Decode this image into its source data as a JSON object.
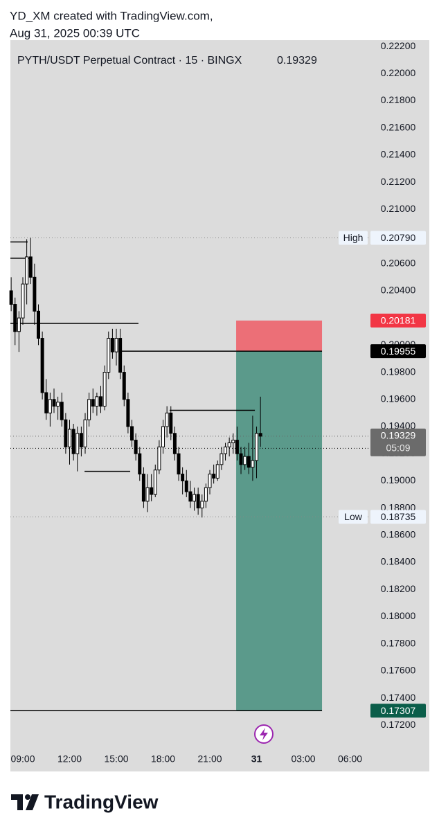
{
  "header": {
    "author_line": "YD_XM created with TradingView.com,",
    "date_line": "Aug 31, 2025 00:39 UTC"
  },
  "chart_data": {
    "type": "candlestick",
    "title": "PYTH/USDT Perpetual Contract · 15 · BINGX",
    "last_price": 0.19329,
    "countdown": "05:09",
    "last_price_color": "#6b6b6b",
    "up_color": "#ffffff",
    "down_color": "#000000",
    "x": [
      8.25,
      8.5,
      8.75,
      9.0,
      9.25,
      9.5,
      9.75,
      10.0,
      10.25,
      10.5,
      10.75,
      11.0,
      11.25,
      11.5,
      11.75,
      12.0,
      12.25,
      12.5,
      12.75,
      13.0,
      13.25,
      13.5,
      13.75,
      14.0,
      14.25,
      14.5,
      14.75,
      15.0,
      15.25,
      15.5,
      15.75,
      16.0,
      16.25,
      16.5,
      16.75,
      17.0,
      17.25,
      17.5,
      17.75,
      18.0,
      18.25,
      18.5,
      18.75,
      19.0,
      19.25,
      19.5,
      19.75,
      20.0,
      20.25,
      20.5,
      20.75,
      21.0,
      21.25,
      21.5,
      21.75,
      22.0,
      22.25,
      22.5,
      22.75,
      23.0,
      23.25,
      23.5,
      23.75,
      24.0,
      24.25
    ],
    "open": [
      0.204,
      0.203,
      0.201,
      0.202,
      0.2045,
      0.2065,
      0.205,
      0.2025,
      0.2005,
      0.1965,
      0.195,
      0.196,
      0.1955,
      0.1958,
      0.1945,
      0.1925,
      0.1938,
      0.192,
      0.1935,
      0.1925,
      0.1945,
      0.196,
      0.1955,
      0.1962,
      0.1955,
      0.198,
      0.2005,
      0.1995,
      0.2005,
      0.198,
      0.196,
      0.194,
      0.193,
      0.192,
      0.1905,
      0.1885,
      0.1895,
      0.189,
      0.1908,
      0.1925,
      0.194,
      0.195,
      0.1935,
      0.192,
      0.1905,
      0.19,
      0.1892,
      0.1885,
      0.189,
      0.188,
      0.1885,
      0.1895,
      0.1905,
      0.1902,
      0.1912,
      0.192,
      0.1925,
      0.1928,
      0.193,
      0.192,
      0.1912,
      0.1918,
      0.191,
      0.1915,
      0.1935
    ],
    "high": [
      0.205,
      0.2035,
      0.2025,
      0.205,
      0.2078,
      0.2079,
      0.206,
      0.203,
      0.201,
      0.1975,
      0.1965,
      0.1968,
      0.1962,
      0.1965,
      0.195,
      0.1945,
      0.1942,
      0.194,
      0.194,
      0.195,
      0.1965,
      0.1968,
      0.1965,
      0.197,
      0.1985,
      0.201,
      0.2012,
      0.2012,
      0.2012,
      0.1985,
      0.1965,
      0.1945,
      0.1935,
      0.1925,
      0.191,
      0.1905,
      0.1905,
      0.1912,
      0.193,
      0.1945,
      0.1955,
      0.1955,
      0.194,
      0.1925,
      0.191,
      0.1908,
      0.19,
      0.1895,
      0.1895,
      0.189,
      0.1898,
      0.1908,
      0.1912,
      0.1915,
      0.1925,
      0.1928,
      0.1932,
      0.1935,
      0.194,
      0.1925,
      0.1925,
      0.1928,
      0.1948,
      0.194,
      0.1962
    ],
    "low": [
      0.2025,
      0.2,
      0.1995,
      0.2015,
      0.203,
      0.2045,
      0.2015,
      0.2,
      0.196,
      0.1945,
      0.194,
      0.195,
      0.1945,
      0.194,
      0.192,
      0.1912,
      0.1915,
      0.1907,
      0.1918,
      0.192,
      0.194,
      0.195,
      0.1948,
      0.195,
      0.1952,
      0.1975,
      0.199,
      0.1985,
      0.1975,
      0.1955,
      0.1935,
      0.1925,
      0.1915,
      0.19,
      0.188,
      0.1877,
      0.1885,
      0.1888,
      0.1905,
      0.192,
      0.1932,
      0.193,
      0.1915,
      0.19,
      0.189,
      0.1888,
      0.188,
      0.1878,
      0.1875,
      0.1873,
      0.188,
      0.189,
      0.1898,
      0.19,
      0.1908,
      0.1915,
      0.1918,
      0.192,
      0.1915,
      0.1905,
      0.1908,
      0.1905,
      0.19,
      0.1902,
      0.1925
    ],
    "close": [
      0.203,
      0.201,
      0.202,
      0.2045,
      0.2065,
      0.205,
      0.2025,
      0.2005,
      0.1965,
      0.195,
      0.196,
      0.1955,
      0.1958,
      0.1945,
      0.1925,
      0.1938,
      0.192,
      0.1935,
      0.1925,
      0.1945,
      0.196,
      0.1955,
      0.1962,
      0.1955,
      0.198,
      0.2005,
      0.1995,
      0.2005,
      0.198,
      0.196,
      0.194,
      0.193,
      0.192,
      0.1905,
      0.1885,
      0.1895,
      0.189,
      0.1908,
      0.1925,
      0.194,
      0.195,
      0.1935,
      0.192,
      0.1905,
      0.19,
      0.1892,
      0.1885,
      0.189,
      0.188,
      0.1885,
      0.1895,
      0.1905,
      0.1902,
      0.1912,
      0.192,
      0.1925,
      0.1928,
      0.193,
      0.192,
      0.1912,
      0.1918,
      0.191,
      0.1915,
      0.1935,
      0.19329
    ],
    "xlim": [
      8.2,
      31.22
    ],
    "xticks": [
      {
        "value": 9,
        "label": "09:00"
      },
      {
        "value": 12,
        "label": "12:00"
      },
      {
        "value": 15,
        "label": "15:00"
      },
      {
        "value": 18,
        "label": "18:00"
      },
      {
        "value": 21,
        "label": "21:00"
      },
      {
        "value": 24,
        "label": "31"
      },
      {
        "value": 27,
        "label": "03:00"
      },
      {
        "value": 30,
        "label": "06:00"
      }
    ],
    "ylim": [
      0.17033,
      0.22236
    ],
    "yticks": [
      {
        "value": 0.222,
        "label": "0.22200"
      },
      {
        "value": 0.22,
        "label": "0.22000"
      },
      {
        "value": 0.218,
        "label": "0.21800"
      },
      {
        "value": 0.216,
        "label": "0.21600"
      },
      {
        "value": 0.214,
        "label": "0.21400"
      },
      {
        "value": 0.212,
        "label": "0.21200"
      },
      {
        "value": 0.21,
        "label": "0.21000"
      },
      {
        "value": 0.208,
        "label": "0.20800"
      },
      {
        "value": 0.206,
        "label": "0.20600"
      },
      {
        "value": 0.204,
        "label": "0.20400"
      },
      {
        "value": 0.202,
        "label": "0.20200"
      },
      {
        "value": 0.2,
        "label": "0.20000"
      },
      {
        "value": 0.198,
        "label": "0.19800"
      },
      {
        "value": 0.196,
        "label": "0.19600"
      },
      {
        "value": 0.194,
        "label": "0.19400"
      },
      {
        "value": 0.192,
        "label": "0.19200"
      },
      {
        "value": 0.19,
        "label": "0.19000"
      },
      {
        "value": 0.188,
        "label": "0.18800"
      },
      {
        "value": 0.186,
        "label": "0.18600"
      },
      {
        "value": 0.184,
        "label": "0.18400"
      },
      {
        "value": 0.182,
        "label": "0.18200"
      },
      {
        "value": 0.18,
        "label": "0.18000"
      },
      {
        "value": 0.178,
        "label": "0.17800"
      },
      {
        "value": 0.176,
        "label": "0.17600"
      },
      {
        "value": 0.174,
        "label": "0.17400"
      },
      {
        "value": 0.172,
        "label": "0.17200"
      }
    ],
    "high_mark": {
      "name": "High",
      "value": 0.2079,
      "label": "0.20790"
    },
    "low_mark": {
      "name": "Low",
      "value": 0.18735
    },
    "bid_line": 0.1924,
    "position": {
      "stop": 0.20181,
      "entry": 0.19955,
      "target": 0.17307,
      "x": [
        22.69,
        28.2
      ],
      "loss_color": "#ec6f77",
      "profit_color": "#5b9a8b",
      "stop_tag_color": "#f23645",
      "entry_tag_color": "#000000",
      "target_tag_color": "#0b5e4a"
    },
    "drawings": [
      {
        "price": 0.2076,
        "x": [
          8.2,
          9.31
        ]
      },
      {
        "price": 0.2064,
        "x": [
          8.2,
          9.44
        ]
      },
      {
        "price": 0.2016,
        "x": [
          8.2,
          16.42
        ]
      },
      {
        "price": 0.19955,
        "x": [
          15.31,
          22.69
        ]
      },
      {
        "price": 0.1952,
        "x": [
          18.42,
          23.89
        ]
      },
      {
        "price": 0.1907,
        "x": [
          12.96,
          15.89
        ]
      },
      {
        "price": 0.17307,
        "x": [
          8.2,
          22.69
        ]
      }
    ]
  },
  "footer": {
    "brand": "TradingView"
  }
}
